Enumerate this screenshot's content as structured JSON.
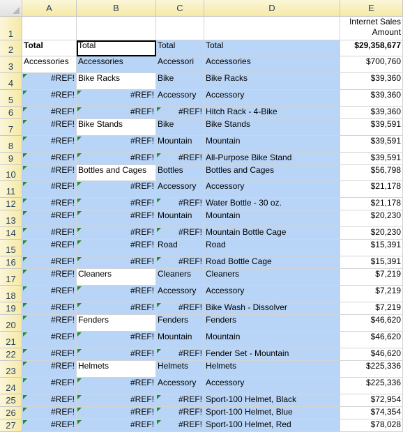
{
  "columns": [
    "A",
    "B",
    "C",
    "D",
    "E"
  ],
  "rows": [
    {
      "n": "1",
      "a": "",
      "b": "",
      "c": "",
      "d": "",
      "e": "Internet Sales Amount"
    },
    {
      "n": "2",
      "a": "Total",
      "b": "Total",
      "c": "Total",
      "d": "Total",
      "e": "$29,358,677"
    },
    {
      "n": "3",
      "a": "Accessories",
      "b": "Accessories",
      "c": "Accessori",
      "d": "Accessories",
      "e": "$700,760"
    },
    {
      "n": "4",
      "a": "#REF!",
      "b": "Bike Racks",
      "c": "Bike",
      "d": "Bike Racks",
      "e": "$39,360"
    },
    {
      "n": "5",
      "a": "#REF!",
      "b": "#REF!",
      "c": "Accessory",
      "d": "Accessory",
      "e": "$39,360"
    },
    {
      "n": "6",
      "a": "#REF!",
      "b": "#REF!",
      "c": "#REF!",
      "d": "Hitch Rack - 4-Bike",
      "e": "$39,360"
    },
    {
      "n": "7",
      "a": "#REF!",
      "b": "Bike Stands",
      "c": "Bike",
      "d": "Bike Stands",
      "e": "$39,591"
    },
    {
      "n": "8",
      "a": "#REF!",
      "b": "#REF!",
      "c": "Mountain",
      "d": "Mountain",
      "e": "$39,591"
    },
    {
      "n": "9",
      "a": "#REF!",
      "b": "#REF!",
      "c": "#REF!",
      "d": "All-Purpose Bike Stand",
      "e": "$39,591"
    },
    {
      "n": "10",
      "a": "#REF!",
      "b": "Bottles and Cages",
      "c": "Bottles",
      "d": "Bottles and Cages",
      "e": "$56,798"
    },
    {
      "n": "11",
      "a": "#REF!",
      "b": "#REF!",
      "c": "Accessory",
      "d": "Accessory",
      "e": "$21,178"
    },
    {
      "n": "12",
      "a": "#REF!",
      "b": "#REF!",
      "c": "#REF!",
      "d": "Water Bottle - 30 oz.",
      "e": "$21,178"
    },
    {
      "n": "13",
      "a": "#REF!",
      "b": "#REF!",
      "c": "Mountain",
      "d": "Mountain",
      "e": "$20,230"
    },
    {
      "n": "14",
      "a": "#REF!",
      "b": "#REF!",
      "c": "#REF!",
      "d": "Mountain Bottle Cage",
      "e": "$20,230"
    },
    {
      "n": "15",
      "a": "#REF!",
      "b": "#REF!",
      "c": "Road",
      "d": "Road",
      "e": "$15,391"
    },
    {
      "n": "16",
      "a": "#REF!",
      "b": "#REF!",
      "c": "#REF!",
      "d": "Road Bottle Cage",
      "e": "$15,391"
    },
    {
      "n": "17",
      "a": "#REF!",
      "b": "Cleaners",
      "c": "Cleaners",
      "d": "Cleaners",
      "e": "$7,219"
    },
    {
      "n": "18",
      "a": "#REF!",
      "b": "#REF!",
      "c": "Accessory",
      "d": "Accessory",
      "e": "$7,219"
    },
    {
      "n": "19",
      "a": "#REF!",
      "b": "#REF!",
      "c": "#REF!",
      "d": "Bike Wash - Dissolver",
      "e": "$7,219"
    },
    {
      "n": "20",
      "a": "#REF!",
      "b": "Fenders",
      "c": "Fenders",
      "d": "Fenders",
      "e": "$46,620"
    },
    {
      "n": "21",
      "a": "#REF!",
      "b": "#REF!",
      "c": "Mountain",
      "d": "Mountain",
      "e": "$46,620"
    },
    {
      "n": "22",
      "a": "#REF!",
      "b": "#REF!",
      "c": "#REF!",
      "d": "Fender Set - Mountain",
      "e": "$46,620"
    },
    {
      "n": "23",
      "a": "#REF!",
      "b": "Helmets",
      "c": "Helmets",
      "d": "Helmets",
      "e": "$225,336"
    },
    {
      "n": "24",
      "a": "#REF!",
      "b": "#REF!",
      "c": "Accessory",
      "d": "Accessory",
      "e": "$225,336"
    },
    {
      "n": "25",
      "a": "#REF!",
      "b": "#REF!",
      "c": "#REF!",
      "d": "Sport-100 Helmet, Black",
      "e": "$72,954"
    },
    {
      "n": "26",
      "a": "#REF!",
      "b": "#REF!",
      "c": "#REF!",
      "d": "Sport-100 Helmet, Blue",
      "e": "$74,354"
    },
    {
      "n": "27",
      "a": "#REF!",
      "b": "#REF!",
      "c": "#REF!",
      "d": "Sport-100 Helmet, Red",
      "e": "$78,028"
    }
  ],
  "colors": {
    "highlight": "#b8d5f7",
    "error_flag": "#1e8f2c",
    "header": "#f6e9a6"
  }
}
